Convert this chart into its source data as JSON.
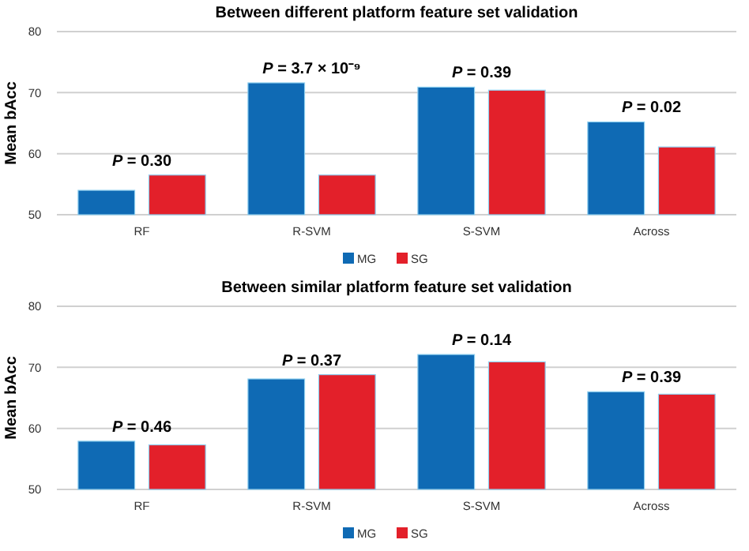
{
  "chart_data": [
    {
      "type": "bar",
      "title": "Between different platform feature set validation",
      "ylabel": "Mean bAcc",
      "categories": [
        "RF",
        "R-SVM",
        "S-SVM",
        "Across"
      ],
      "series": [
        {
          "name": "MG",
          "color": "#0f6ab4",
          "values": [
            54.0,
            71.6,
            70.9,
            65.2
          ]
        },
        {
          "name": "SG",
          "color": "#e3202a",
          "values": [
            56.5,
            56.5,
            70.4,
            61.1
          ]
        }
      ],
      "ylim": [
        50,
        80
      ],
      "yticks": [
        50,
        60,
        70,
        80
      ],
      "grid": "y",
      "legend": "bottom",
      "annotations": [
        {
          "text": "P = 0.30",
          "x": "RF",
          "y": 56.5
        },
        {
          "text": "P = 3.7 × 10⁻⁹",
          "x": "R-SVM",
          "y": 71.6
        },
        {
          "text": "P = 0.39",
          "x": "S-SVM",
          "y": 70.9
        },
        {
          "text": "P = 0.02",
          "x": "Across",
          "y": 65.2
        }
      ]
    },
    {
      "type": "bar",
      "title": "Between similar platform feature set validation",
      "ylabel": "Mean bAcc",
      "categories": [
        "RF",
        "R-SVM",
        "S-SVM",
        "Across"
      ],
      "series": [
        {
          "name": "MG",
          "color": "#0f6ab4",
          "values": [
            57.9,
            68.1,
            72.1,
            66.0
          ]
        },
        {
          "name": "SG",
          "color": "#e3202a",
          "values": [
            57.3,
            68.8,
            70.9,
            65.6
          ]
        }
      ],
      "ylim": [
        50,
        80
      ],
      "yticks": [
        50,
        60,
        70,
        80
      ],
      "grid": "y",
      "legend": "bottom",
      "annotations": [
        {
          "text": "P = 0.46",
          "x": "RF",
          "y": 57.9
        },
        {
          "text": "P = 0.37",
          "x": "R-SVM",
          "y": 68.8
        },
        {
          "text": "P = 0.14",
          "x": "S-SVM",
          "y": 72.1
        },
        {
          "text": "P = 0.39",
          "x": "Across",
          "y": 66.0
        }
      ]
    }
  ]
}
